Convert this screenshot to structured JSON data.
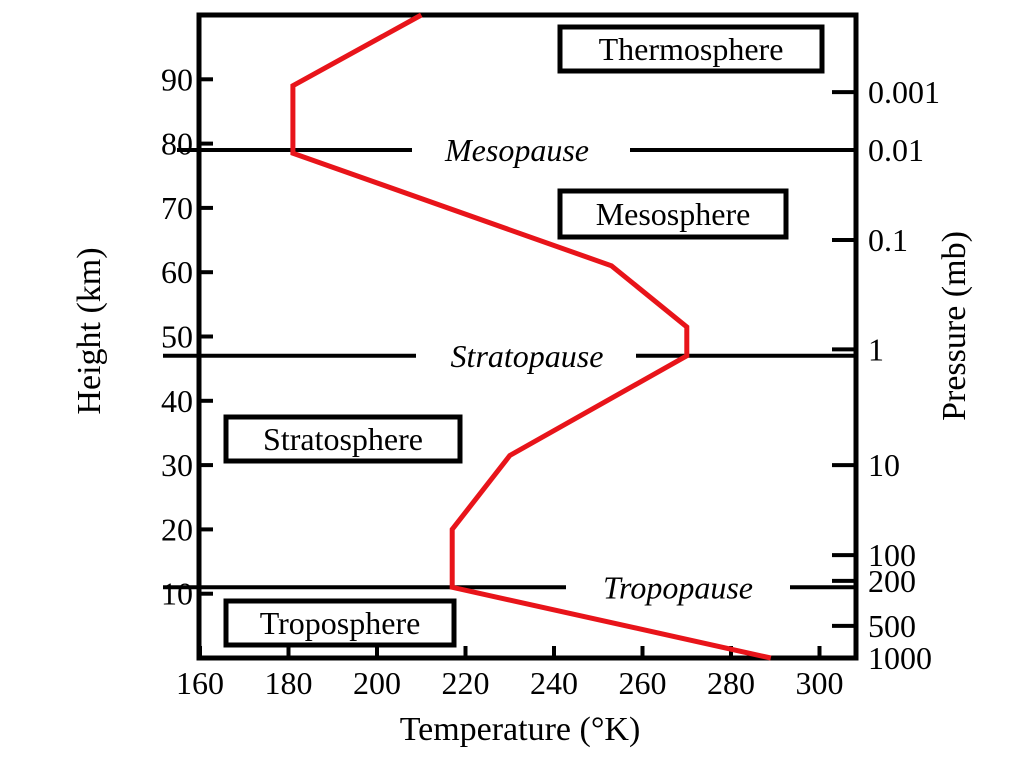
{
  "chart_data": {
    "type": "line",
    "xlabel": "Temperature (°K)",
    "ylabel": "Height (km)",
    "y2label": "Pressure (mb)",
    "xlim": [
      160,
      305
    ],
    "ylim": [
      0,
      100
    ],
    "x_ticks": [
      160,
      180,
      200,
      220,
      240,
      260,
      280,
      300
    ],
    "y_ticks": [
      10,
      20,
      30,
      40,
      50,
      60,
      70,
      80,
      90
    ],
    "pressure_ticks": [
      {
        "label": "0.001",
        "height": 88
      },
      {
        "label": "0.01",
        "height": 79
      },
      {
        "label": "0.1",
        "height": 65
      },
      {
        "label": "1",
        "height": 48
      },
      {
        "label": "10",
        "height": 30
      },
      {
        "label": "100",
        "height": 16
      },
      {
        "label": "200",
        "height": 12
      },
      {
        "label": "500",
        "height": 5
      },
      {
        "label": "1000",
        "height": 0
      }
    ],
    "series": [
      {
        "color": "#e8141a",
        "points": [
          {
            "x": 289,
            "y": 0
          },
          {
            "x": 217,
            "y": 11
          },
          {
            "x": 217,
            "y": 20
          },
          {
            "x": 230,
            "y": 31.5
          },
          {
            "x": 270,
            "y": 47
          },
          {
            "x": 270,
            "y": 51.5
          },
          {
            "x": 253,
            "y": 61
          },
          {
            "x": 181,
            "y": 78.5
          },
          {
            "x": 181,
            "y": 89
          },
          {
            "x": 210,
            "y": 100
          }
        ]
      }
    ],
    "boundaries": [
      {
        "label": "Tropopause",
        "height": 11
      },
      {
        "label": "Stratopause",
        "height": 47
      },
      {
        "label": "Mesopause",
        "height": 79
      }
    ],
    "layers": [
      {
        "label": "Troposphere"
      },
      {
        "label": "Stratosphere"
      },
      {
        "label": "Mesosphere"
      },
      {
        "label": "Thermosphere"
      }
    ]
  }
}
